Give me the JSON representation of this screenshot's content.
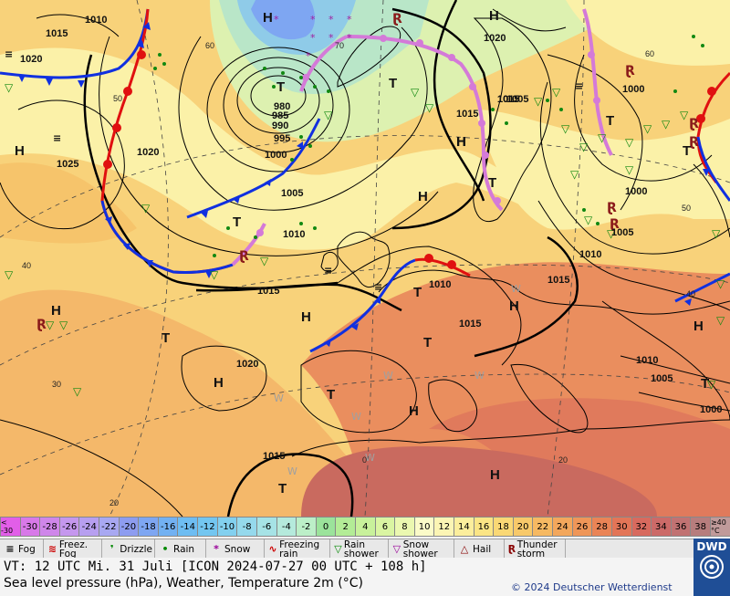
{
  "map": {
    "pressure_labels": [
      {
        "t": "1010"
      },
      {
        "t": "1015"
      },
      {
        "t": "1020"
      },
      {
        "t": "1020"
      },
      {
        "t": "1025"
      },
      {
        "t": "980"
      },
      {
        "t": "985"
      },
      {
        "t": "990"
      },
      {
        "t": "995"
      },
      {
        "t": "1000"
      },
      {
        "t": "1005"
      },
      {
        "t": "1010"
      },
      {
        "t": "1015"
      },
      {
        "t": "1020"
      },
      {
        "t": "1015"
      },
      {
        "t": "1005"
      },
      {
        "t": "1000"
      },
      {
        "t": "1000"
      },
      {
        "t": "1005"
      },
      {
        "t": "1010"
      },
      {
        "t": "1015"
      },
      {
        "t": "1010"
      },
      {
        "t": "1015"
      },
      {
        "t": "1015"
      },
      {
        "t": "1010"
      },
      {
        "t": "1005"
      },
      {
        "t": "1000"
      },
      {
        "t": "1020"
      },
      {
        "t": "1015"
      },
      {
        "t": "1015"
      }
    ],
    "pressure_centres": [
      {
        "t": "H"
      },
      {
        "t": "H"
      },
      {
        "t": "H"
      },
      {
        "t": "H"
      },
      {
        "t": "H"
      },
      {
        "t": "H"
      },
      {
        "t": "H"
      },
      {
        "t": "H"
      },
      {
        "t": "H"
      },
      {
        "t": "H"
      },
      {
        "t": "H"
      },
      {
        "t": "H"
      },
      {
        "t": "H"
      },
      {
        "t": "T"
      },
      {
        "t": "T"
      },
      {
        "t": "T"
      },
      {
        "t": "T"
      },
      {
        "t": "T"
      },
      {
        "t": "T"
      },
      {
        "t": "T"
      },
      {
        "t": "T"
      },
      {
        "t": "T"
      },
      {
        "t": "T"
      },
      {
        "t": "T"
      },
      {
        "t": "T"
      }
    ],
    "latitude_labels": [
      {
        "t": "60"
      },
      {
        "t": "70"
      },
      {
        "t": "50"
      },
      {
        "t": "40"
      },
      {
        "t": "30"
      },
      {
        "t": "20"
      },
      {
        "t": "60"
      },
      {
        "t": "50"
      },
      {
        "t": "40"
      },
      {
        "t": "0"
      },
      {
        "t": "20"
      }
    ]
  },
  "scale": {
    "cells": [
      {
        "t": "< -30",
        "c": "#e25ee8"
      },
      {
        "t": "-30",
        "c": "#d879e8"
      },
      {
        "t": "-28",
        "c": "#cf86ea"
      },
      {
        "t": "-26",
        "c": "#c597ee"
      },
      {
        "t": "-24",
        "c": "#b79ff0"
      },
      {
        "t": "-22",
        "c": "#a8a8f2"
      },
      {
        "t": "-20",
        "c": "#8d9cf0"
      },
      {
        "t": "-18",
        "c": "#7ea6f2"
      },
      {
        "t": "-16",
        "c": "#72b1f2"
      },
      {
        "t": "-14",
        "c": "#6ebdf2"
      },
      {
        "t": "-12",
        "c": "#73c6f0"
      },
      {
        "t": "-10",
        "c": "#82d0ef"
      },
      {
        "t": "-8",
        "c": "#95d9ec"
      },
      {
        "t": "-6",
        "c": "#a6e3e6"
      },
      {
        "t": "-4",
        "c": "#b5eadc"
      },
      {
        "t": "-2",
        "c": "#bcefc8"
      },
      {
        "t": "0",
        "c": "#9be39b"
      },
      {
        "t": "2",
        "c": "#b3ec96"
      },
      {
        "t": "4",
        "c": "#c8f19b"
      },
      {
        "t": "6",
        "c": "#daf5a2"
      },
      {
        "t": "8",
        "c": "#ebf8b0"
      },
      {
        "t": "10",
        "c": "#fbfbc8"
      },
      {
        "t": "12",
        "c": "#fcf5b4"
      },
      {
        "t": "14",
        "c": "#fcee9c"
      },
      {
        "t": "16",
        "c": "#fbe585"
      },
      {
        "t": "18",
        "c": "#fad875"
      },
      {
        "t": "20",
        "c": "#f8c96a"
      },
      {
        "t": "22",
        "c": "#f6b962"
      },
      {
        "t": "24",
        "c": "#f3a75c"
      },
      {
        "t": "26",
        "c": "#ef9658"
      },
      {
        "t": "28",
        "c": "#ea8456"
      },
      {
        "t": "30",
        "c": "#e37557"
      },
      {
        "t": "32",
        "c": "#d86a5e"
      },
      {
        "t": "34",
        "c": "#cc6a68"
      },
      {
        "t": "36",
        "c": "#c17272"
      },
      {
        "t": "38",
        "c": "#b77d7d"
      },
      {
        "t": "≥40 °C",
        "c": "#c09a9a"
      }
    ]
  },
  "legend": [
    {
      "sym": "≡",
      "label": "Fog",
      "color": "#000"
    },
    {
      "sym": "≋",
      "label": "Freez. Fog",
      "color": "#c00"
    },
    {
      "sym": "❜",
      "label": "Drizzle",
      "color": "#080"
    },
    {
      "sym": "•",
      "label": "Rain",
      "color": "#080"
    },
    {
      "sym": "*",
      "label": "Snow",
      "color": "#909"
    },
    {
      "sym": "∿",
      "label": "Freezing rain",
      "color": "#c00"
    },
    {
      "sym": "▽",
      "label": "Rain shower",
      "color": "#080"
    },
    {
      "sym": "▽",
      "label": "Snow shower",
      "color": "#909"
    },
    {
      "sym": "△",
      "label": "Hail",
      "color": "#800"
    },
    {
      "sym": "Ɽ",
      "label": "Thunder storm",
      "color": "#800"
    }
  ],
  "info": {
    "vt": "VT: 12 UTC Mi.  31 Juli [ICON 2024-07-27  00 UTC + 108 h]",
    "desc": "Sea level pressure (hPa), Weather, Temperature 2m (°C)",
    "copyright": "© 2024 Deutscher Wetterdienst",
    "logo": "DWD"
  }
}
